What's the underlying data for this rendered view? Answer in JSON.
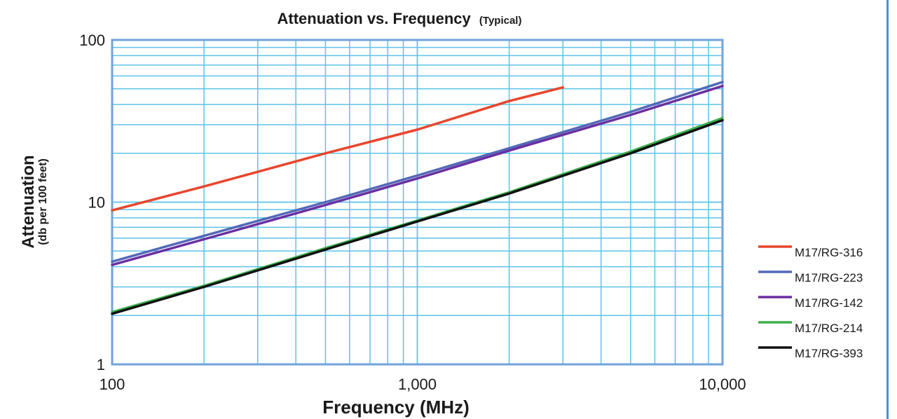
{
  "chart_data": {
    "type": "line",
    "title": "Attenuation vs. Frequency",
    "title_suffix": "(Typical)",
    "xlabel": "Frequency (MHz)",
    "ylabel": "Attenuation",
    "ylabel_sub": "(db per 100 feet)",
    "x_scale": "log",
    "y_scale": "log",
    "xlim": [
      100,
      10000
    ],
    "ylim": [
      1,
      100
    ],
    "x_ticks": [
      {
        "value": 100,
        "label": "100"
      },
      {
        "value": 1000,
        "label": "1,000"
      },
      {
        "value": 10000,
        "label": "10,000"
      }
    ],
    "y_ticks": [
      {
        "value": 1,
        "label": "1"
      },
      {
        "value": 10,
        "label": "10"
      },
      {
        "value": 100,
        "label": "100"
      }
    ],
    "grid": true,
    "legend_position": "right",
    "series": [
      {
        "name": "M17/RG-316",
        "color": "#e8452c",
        "x": [
          100,
          200,
          500,
          1000,
          2000,
          3000
        ],
        "y": [
          8.9,
          12.5,
          20,
          28,
          42,
          51
        ]
      },
      {
        "name": "M17/RG-223",
        "color": "#5468b8",
        "x": [
          100,
          200,
          500,
          1000,
          2000,
          5000,
          10000
        ],
        "y": [
          4.3,
          6.2,
          10,
          14.6,
          21.5,
          36,
          55
        ]
      },
      {
        "name": "M17/RG-142",
        "color": "#6a2fa0",
        "x": [
          100,
          200,
          500,
          1000,
          2000,
          5000,
          10000
        ],
        "y": [
          4.1,
          5.9,
          9.6,
          14,
          20.8,
          34.5,
          52
        ]
      },
      {
        "name": "M17/RG-214",
        "color": "#3cae4c",
        "x": [
          100,
          200,
          500,
          1000,
          2000,
          5000,
          10000
        ],
        "y": [
          2.1,
          3.05,
          5.2,
          7.7,
          11.5,
          20.5,
          33
        ]
      },
      {
        "name": "M17/RG-393",
        "color": "#111111",
        "x": [
          100,
          200,
          500,
          1000,
          2000,
          5000,
          10000
        ],
        "y": [
          2.05,
          3.0,
          5.1,
          7.6,
          11.3,
          20,
          32
        ]
      }
    ]
  }
}
